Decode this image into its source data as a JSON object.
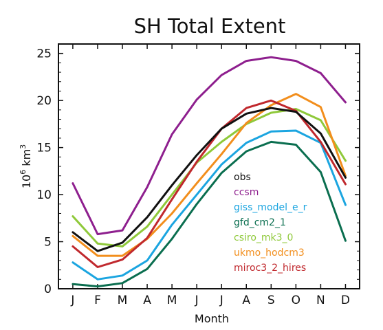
{
  "chart_data": {
    "type": "line",
    "title": "SH Total Extent",
    "xlabel": "Month",
    "ylabel": "10",
    "ylabel_sup1": "6",
    "ylabel_unit": " km",
    "ylabel_sup2": "3",
    "categories": [
      "J",
      "F",
      "M",
      "A",
      "M",
      "J",
      "J",
      "A",
      "S",
      "O",
      "N",
      "D"
    ],
    "ylim": [
      0,
      26
    ],
    "yticks": [
      0,
      5,
      10,
      15,
      20,
      25
    ],
    "ytick_labels": [
      "0",
      "5",
      "10",
      "15",
      "20",
      "25"
    ],
    "grid": false,
    "legend_position": "right-center",
    "series": [
      {
        "name": "obs",
        "color": "#111111",
        "values": [
          6.0,
          4.0,
          4.9,
          7.6,
          11.0,
          14.2,
          17.0,
          18.6,
          19.2,
          18.8,
          16.5,
          11.8
        ]
      },
      {
        "name": "ccsm",
        "color": "#8e1f8e",
        "values": [
          11.2,
          5.8,
          6.2,
          10.8,
          16.4,
          20.1,
          22.7,
          24.2,
          24.6,
          24.2,
          22.9,
          19.8
        ]
      },
      {
        "name": "giss_model_e_r",
        "color": "#1ba5e0",
        "values": [
          2.8,
          1.0,
          1.4,
          3.0,
          6.8,
          10.0,
          13.2,
          15.5,
          16.7,
          16.8,
          15.5,
          8.9
        ]
      },
      {
        "name": "gfd_cm2_1",
        "color": "#0a6e4f",
        "values": [
          0.5,
          0.25,
          0.6,
          2.1,
          5.3,
          9.0,
          12.3,
          14.6,
          15.6,
          15.3,
          12.4,
          5.1
        ]
      },
      {
        "name": "csiro_mk3_0",
        "color": "#8fc93a",
        "values": [
          7.7,
          4.8,
          4.5,
          6.6,
          10.0,
          13.4,
          15.6,
          17.5,
          18.7,
          19.1,
          17.9,
          13.6
        ]
      },
      {
        "name": "ukmo_hodcm3",
        "color": "#f28e1c",
        "values": [
          5.6,
          3.5,
          3.5,
          5.3,
          8.0,
          11.2,
          14.3,
          17.6,
          19.5,
          20.7,
          19.3,
          12.0
        ]
      },
      {
        "name": "miroc3_2_hires",
        "color": "#c0282d",
        "values": [
          4.5,
          2.3,
          3.1,
          5.4,
          9.5,
          13.5,
          17.0,
          19.2,
          20.0,
          18.9,
          15.6,
          11.1
        ]
      }
    ]
  }
}
